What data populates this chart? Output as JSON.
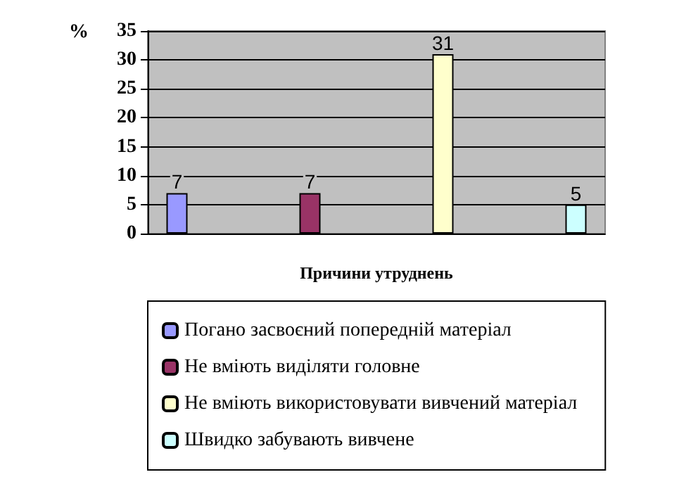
{
  "chart_data": {
    "type": "bar",
    "xlabel": "Причини утруднень",
    "ylabel": "%",
    "categories": [
      null
    ],
    "series": [
      {
        "name": "Погано засвоєний попередній матеріал",
        "color": "#9999ff",
        "values": [
          7
        ]
      },
      {
        "name": "Не вміють виділяти головне",
        "color": "#993366",
        "values": [
          7
        ]
      },
      {
        "name": "Не вміють використовувати вивчений матеріал",
        "color": "#ffffcc",
        "values": [
          31
        ]
      },
      {
        "name": "Швидко забувають вивчене",
        "color": "#ccffff",
        "values": [
          5
        ]
      }
    ],
    "ylim": [
      0,
      35
    ],
    "yticks": [
      0,
      5,
      10,
      15,
      20,
      25,
      30,
      35
    ],
    "grid": "y",
    "legend": "bottom",
    "data_labels": true
  }
}
